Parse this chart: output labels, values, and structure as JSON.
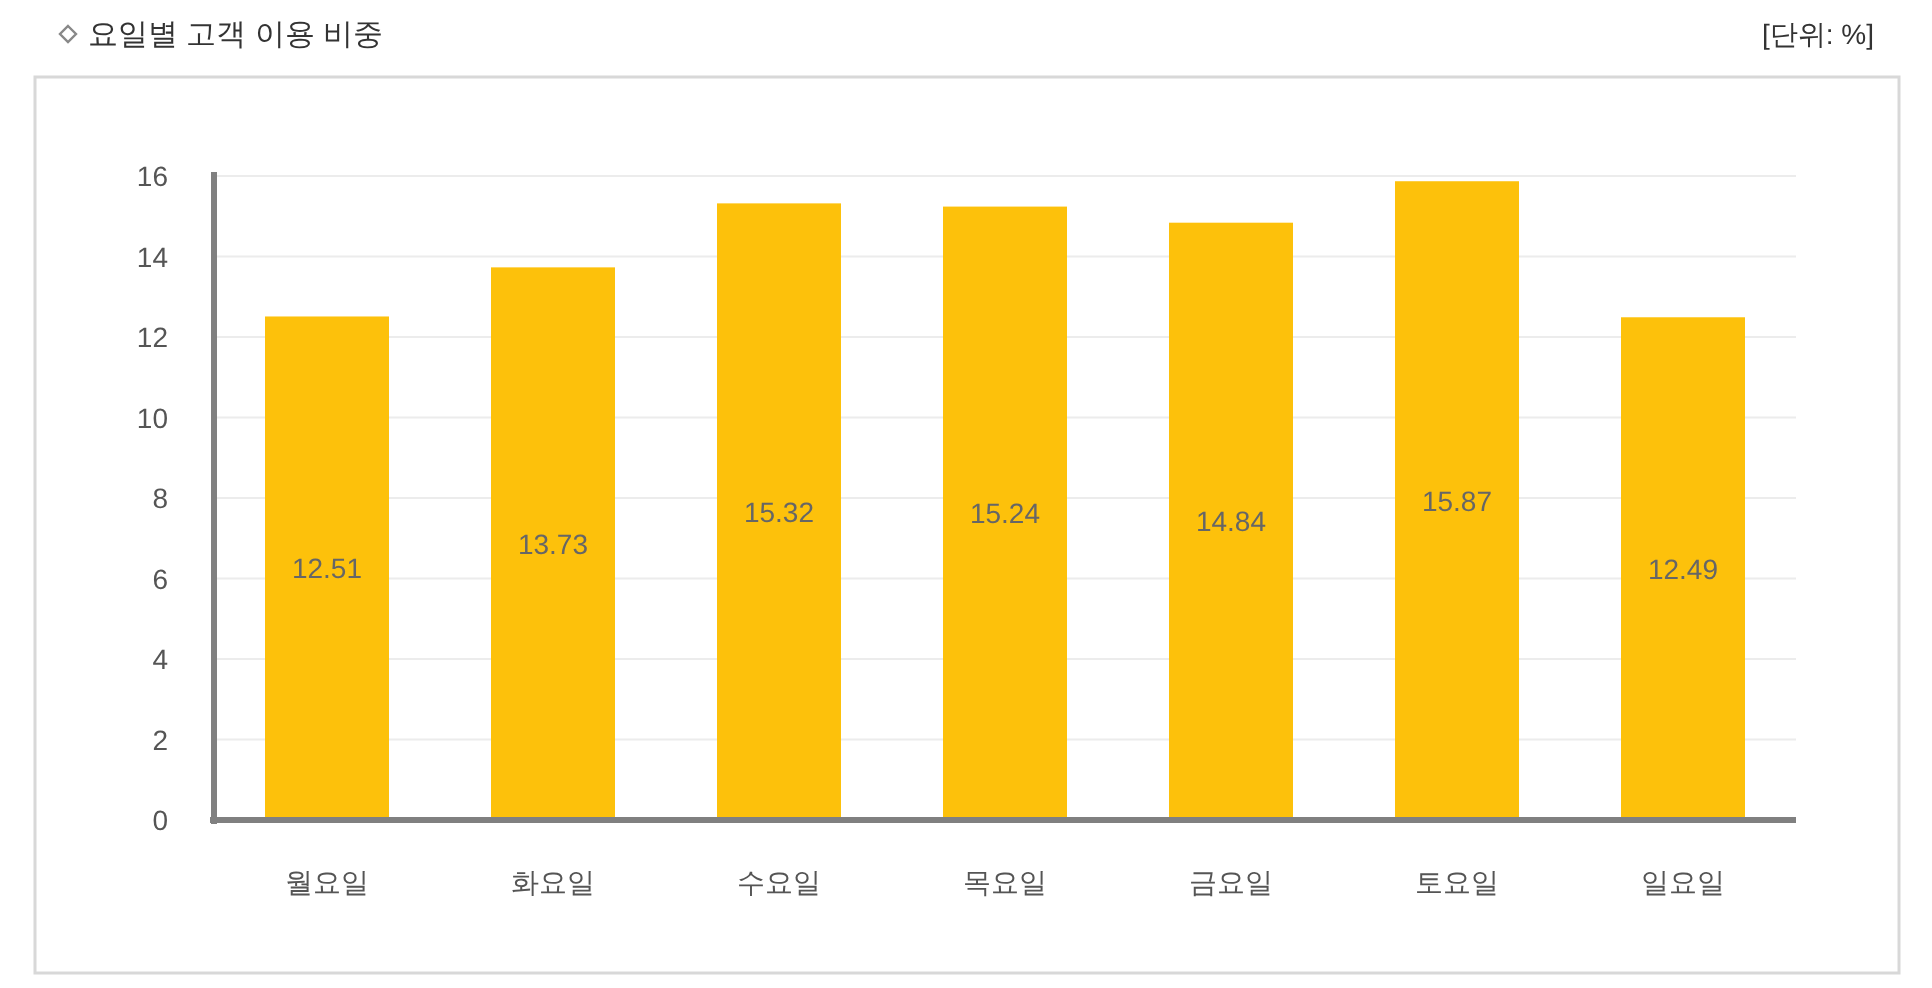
{
  "chart_data": {
    "type": "bar",
    "title": "요일별 고객 이용 비중",
    "annotations": [
      "[단위: %]"
    ],
    "categories": [
      "월요일",
      "화요일",
      "수요일",
      "목요일",
      "금요일",
      "토요일",
      "일요일"
    ],
    "values": [
      12.51,
      13.73,
      15.32,
      15.24,
      14.84,
      15.87,
      12.49
    ],
    "color": "#fdc10b",
    "ylim": [
      0,
      16
    ],
    "yticks": [
      0,
      2,
      4,
      6,
      8,
      10,
      12,
      14,
      16
    ],
    "grid": "y",
    "data_labels": true
  }
}
